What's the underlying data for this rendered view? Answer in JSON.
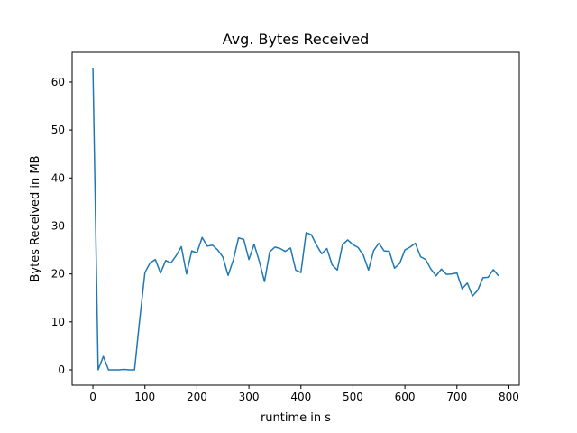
{
  "chart_data": {
    "type": "line",
    "title": "Avg. Bytes Received",
    "xlabel": "runtime in s",
    "ylabel": "Bytes Received in MB",
    "xlim": [
      -40,
      820
    ],
    "ylim": [
      -3.2,
      66.2
    ],
    "xticks": [
      0,
      100,
      200,
      300,
      400,
      500,
      600,
      700,
      800
    ],
    "yticks": [
      0,
      10,
      20,
      30,
      40,
      50,
      60
    ],
    "grid": false,
    "color": "#1f77b4",
    "series": [
      {
        "x": [
          0,
          10,
          20,
          30,
          40,
          50,
          60,
          70,
          80,
          90,
          100,
          110,
          120,
          130,
          140,
          150,
          160,
          170,
          180,
          190,
          200,
          210,
          220,
          230,
          240,
          250,
          260,
          270,
          280,
          290,
          300,
          310,
          320,
          330,
          340,
          350,
          360,
          370,
          380,
          390,
          400,
          410,
          420,
          430,
          440,
          450,
          460,
          470,
          480,
          490,
          500,
          510,
          520,
          530,
          540,
          550,
          560,
          570,
          580,
          590,
          600,
          610,
          620,
          630,
          640,
          650,
          660,
          670,
          680,
          690,
          700,
          710,
          720,
          730,
          740,
          750,
          760,
          770,
          780
        ],
        "y": [
          63.0,
          0.0,
          2.8,
          0.0,
          0.0,
          0.0,
          0.1,
          0.0,
          0.0,
          10.5,
          20.3,
          22.3,
          23.0,
          20.2,
          22.8,
          22.3,
          23.8,
          25.7,
          20.0,
          24.8,
          24.4,
          27.6,
          25.8,
          26.0,
          25.0,
          23.5,
          19.7,
          22.9,
          27.5,
          27.2,
          23.0,
          26.2,
          22.6,
          18.4,
          24.6,
          25.6,
          25.3,
          24.7,
          25.4,
          20.8,
          20.3,
          28.6,
          28.2,
          26.0,
          24.2,
          25.3,
          21.9,
          20.8,
          26.1,
          27.1,
          26.1,
          25.5,
          23.9,
          20.8,
          24.9,
          26.4,
          24.8,
          24.7,
          21.2,
          22.2,
          25.0,
          25.6,
          26.4,
          23.6,
          23.0,
          21.0,
          19.6,
          21.0,
          19.9,
          20.0,
          20.2,
          16.9,
          18.1,
          15.4,
          16.6,
          19.2,
          19.3,
          20.9,
          19.6
        ]
      }
    ]
  }
}
